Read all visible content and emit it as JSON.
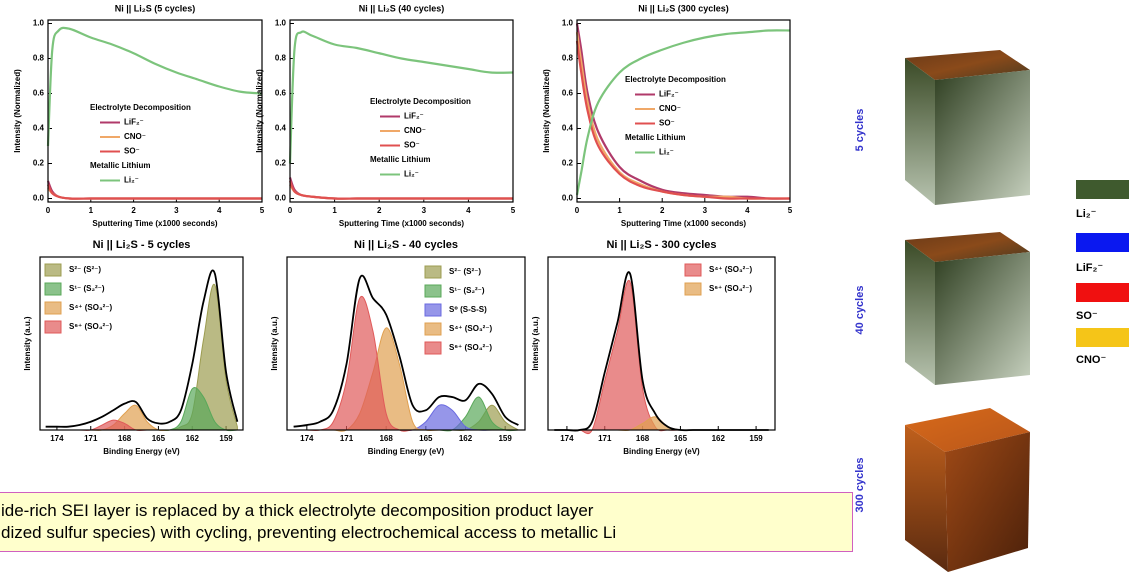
{
  "chart_data": [
    {
      "type": "line",
      "title": "Ni || Li₂S (5 cycles)",
      "x_label": "Sputtering Time (x1000 seconds)",
      "y_label": "Intensity (Normalized)",
      "x": [
        0,
        0.1,
        0.25,
        0.5,
        1,
        1.5,
        2,
        2.5,
        3,
        3.5,
        4,
        4.5,
        5
      ],
      "xlim": [
        0,
        5
      ],
      "xticks": [
        0,
        1,
        2,
        3,
        4,
        5
      ],
      "ylim": [
        -0.02,
        1.02
      ],
      "yticks": [
        {
          "value": 0,
          "label": "0.0"
        },
        {
          "value": 0.2,
          "label": "0.2"
        },
        {
          "value": 0.4,
          "label": "0.4"
        },
        {
          "value": 0.6,
          "label": "0.6"
        },
        {
          "value": 0.8,
          "label": "0.8"
        },
        {
          "value": 1,
          "label": "1.0"
        }
      ],
      "legend_headings": [
        "Electrolyte Decomposition",
        "Metallic Lithium"
      ],
      "series": [
        {
          "name": "LiF₂⁻",
          "color": "#b03a6a",
          "values": [
            0.1,
            0.04,
            0.01,
            0,
            0,
            0,
            0,
            0,
            0,
            0,
            0,
            0,
            0
          ]
        },
        {
          "name": "CNO⁻",
          "color": "#f0a868",
          "values": [
            0.06,
            0.03,
            0.01,
            0,
            0,
            0,
            0,
            0,
            0,
            0,
            0,
            0,
            0
          ]
        },
        {
          "name": "SO⁻",
          "color": "#e05050",
          "values": [
            0.08,
            0.03,
            0.01,
            0,
            0,
            0,
            0,
            0,
            0,
            0,
            0,
            0,
            0
          ]
        },
        {
          "name": "Li₂⁻",
          "color": "#7cc47c",
          "values": [
            0.3,
            0.85,
            0.96,
            0.97,
            0.92,
            0.88,
            0.83,
            0.77,
            0.72,
            0.68,
            0.64,
            0.61,
            0.6
          ]
        }
      ]
    },
    {
      "type": "line",
      "title": "Ni || Li₂S (40 cycles)",
      "x_label": "Sputtering Time (x1000 seconds)",
      "y_label": "Intensity (Normalized)",
      "x": [
        0,
        0.1,
        0.25,
        0.5,
        1,
        1.5,
        2,
        2.5,
        3,
        3.5,
        4,
        4.5,
        5
      ],
      "xlim": [
        0,
        5
      ],
      "xticks": [
        0,
        1,
        2,
        3,
        4,
        5
      ],
      "ylim": [
        -0.02,
        1.02
      ],
      "yticks": [
        {
          "value": 0,
          "label": "0.0"
        },
        {
          "value": 0.2,
          "label": "0.2"
        },
        {
          "value": 0.4,
          "label": "0.4"
        },
        {
          "value": 0.6,
          "label": "0.6"
        },
        {
          "value": 0.8,
          "label": "0.8"
        },
        {
          "value": 1,
          "label": "1.0"
        }
      ],
      "legend_headings": [
        "Electrolyte Decomposition",
        "Metallic Lithium"
      ],
      "series": [
        {
          "name": "LiF₂⁻",
          "color": "#b03a6a",
          "values": [
            0.12,
            0.05,
            0.02,
            0.01,
            0,
            0,
            0,
            0,
            0,
            0,
            0,
            0,
            0
          ]
        },
        {
          "name": "CNO⁻",
          "color": "#f0a868",
          "values": [
            0.08,
            0.04,
            0.02,
            0.01,
            0,
            0,
            0,
            0,
            0,
            0,
            0,
            0,
            0
          ]
        },
        {
          "name": "SO⁻",
          "color": "#e05050",
          "values": [
            0.1,
            0.04,
            0.02,
            0.01,
            0,
            0,
            0,
            0,
            0,
            0,
            0,
            0,
            0
          ]
        },
        {
          "name": "Li₂⁻",
          "color": "#7cc47c",
          "values": [
            0.2,
            0.85,
            0.95,
            0.93,
            0.88,
            0.86,
            0.83,
            0.8,
            0.78,
            0.76,
            0.74,
            0.72,
            0.72
          ]
        }
      ]
    },
    {
      "type": "line",
      "title": "Ni || Li₂S (300 cycles)",
      "x_label": "Sputtering Time (x1000 seconds)",
      "y_label": "Intensity (Normalized)",
      "x": [
        0,
        0.1,
        0.25,
        0.5,
        1,
        1.5,
        2,
        2.5,
        3,
        3.5,
        4,
        4.5,
        5
      ],
      "xlim": [
        0,
        5
      ],
      "xticks": [
        0,
        1,
        2,
        3,
        4,
        5
      ],
      "ylim": [
        -0.02,
        1.02
      ],
      "yticks": [
        {
          "value": 0,
          "label": "0.0"
        },
        {
          "value": 0.2,
          "label": "0.2"
        },
        {
          "value": 0.4,
          "label": "0.4"
        },
        {
          "value": 0.6,
          "label": "0.6"
        },
        {
          "value": 0.8,
          "label": "0.8"
        },
        {
          "value": 1,
          "label": "1.0"
        }
      ],
      "legend_headings": [
        "Electrolyte Decomposition",
        "Metallic Lithium"
      ],
      "series": [
        {
          "name": "LiF₂⁻",
          "color": "#b03a6a",
          "values": [
            1.0,
            0.85,
            0.6,
            0.38,
            0.18,
            0.1,
            0.05,
            0.03,
            0.02,
            0.01,
            0.01,
            0,
            0
          ]
        },
        {
          "name": "CNO⁻",
          "color": "#f0a868",
          "values": [
            0.95,
            0.78,
            0.55,
            0.33,
            0.15,
            0.08,
            0.04,
            0.02,
            0.01,
            0.01,
            0,
            0,
            0
          ]
        },
        {
          "name": "SO⁻",
          "color": "#e05050",
          "values": [
            0.9,
            0.72,
            0.5,
            0.3,
            0.14,
            0.07,
            0.04,
            0.02,
            0.01,
            0,
            0,
            0,
            0
          ]
        },
        {
          "name": "Li₂⁻",
          "color": "#7cc47c",
          "values": [
            0.02,
            0.15,
            0.35,
            0.55,
            0.72,
            0.8,
            0.85,
            0.89,
            0.92,
            0.94,
            0.95,
            0.96,
            0.96
          ]
        }
      ]
    },
    {
      "type": "area",
      "title": "Ni || Li₂S - 5 cycles",
      "x_label": "Binding Energy (eV)",
      "y_label": "Intensity (a.u.)",
      "x": [
        175,
        174,
        173,
        172,
        171,
        170,
        169,
        168,
        167,
        166,
        165,
        164,
        163,
        162,
        161,
        160,
        159,
        158
      ],
      "xlim": [
        175.5,
        157.5
      ],
      "xticks": [
        174,
        171,
        168,
        165,
        162,
        159
      ],
      "ylim": [
        0,
        1.05
      ],
      "series": [
        {
          "name": "S²⁻ (S²⁻)",
          "color": "#9c9c50",
          "fill": true,
          "values": [
            0,
            0,
            0,
            0,
            0,
            0,
            0,
            0,
            0,
            0,
            0,
            0,
            0.02,
            0.1,
            0.55,
            0.88,
            0.3,
            0.02
          ]
        },
        {
          "name": "S¹⁻ (S₂²⁻)",
          "color": "#5aa85a",
          "fill": true,
          "values": [
            0,
            0,
            0,
            0,
            0,
            0,
            0,
            0,
            0,
            0,
            0,
            0,
            0.05,
            0.25,
            0.2,
            0.05,
            0,
            0
          ]
        },
        {
          "name": "S⁴⁺ (SO₃²⁻)",
          "color": "#e0a050",
          "fill": true,
          "values": [
            0,
            0,
            0,
            0,
            0,
            0,
            0.03,
            0.1,
            0.15,
            0.05,
            0,
            0,
            0,
            0,
            0,
            0,
            0,
            0
          ]
        },
        {
          "name": "S⁶⁺ (SO₄²⁻)",
          "color": "#e05a5a",
          "fill": true,
          "values": [
            0,
            0,
            0,
            0,
            0,
            0.03,
            0.06,
            0.04,
            0,
            0,
            0,
            0,
            0,
            0,
            0,
            0,
            0,
            0
          ]
        },
        {
          "color": "#000000",
          "fill": false,
          "values": [
            0.02,
            0.02,
            0.02,
            0.03,
            0.05,
            0.08,
            0.12,
            0.16,
            0.17,
            0.07,
            0.04,
            0.05,
            0.12,
            0.4,
            0.78,
            0.95,
            0.35,
            0.05
          ]
        }
      ]
    },
    {
      "type": "area",
      "title": "Ni || Li₂S - 40 cycles",
      "x_label": "Binding Energy (eV)",
      "y_label": "Intensity (a.u.)",
      "x": [
        175,
        174,
        173,
        172,
        171,
        170,
        169,
        168,
        167,
        166,
        165,
        164,
        163,
        162,
        161,
        160,
        159,
        158
      ],
      "xlim": [
        175.5,
        157.5
      ],
      "xticks": [
        174,
        171,
        168,
        165,
        162,
        159
      ],
      "ylim": [
        0,
        1.05
      ],
      "series": [
        {
          "name": "S²⁻ (S²⁻)",
          "color": "#9c9c50",
          "fill": true,
          "values": [
            0,
            0,
            0,
            0,
            0,
            0,
            0,
            0,
            0,
            0,
            0,
            0,
            0,
            0,
            0.05,
            0.15,
            0.05,
            0
          ]
        },
        {
          "name": "S¹⁻ (S₂²⁻)",
          "color": "#5aa85a",
          "fill": true,
          "values": [
            0,
            0,
            0,
            0,
            0,
            0,
            0,
            0,
            0,
            0,
            0,
            0,
            0,
            0.08,
            0.2,
            0.05,
            0,
            0
          ]
        },
        {
          "name": "S⁰ (S-S-S)",
          "color": "#6a6ae0",
          "fill": true,
          "values": [
            0,
            0,
            0,
            0,
            0,
            0,
            0,
            0,
            0,
            0,
            0.05,
            0.15,
            0.12,
            0.02,
            0,
            0,
            0,
            0
          ]
        },
        {
          "name": "S⁴⁺ (SO₃²⁻)",
          "color": "#e0a050",
          "fill": true,
          "values": [
            0,
            0,
            0,
            0,
            0,
            0.1,
            0.35,
            0.62,
            0.4,
            0.05,
            0,
            0,
            0,
            0,
            0,
            0,
            0,
            0
          ]
        },
        {
          "name": "S⁶⁺ (SO₄²⁻)",
          "color": "#e05a5a",
          "fill": true,
          "values": [
            0,
            0,
            0,
            0.05,
            0.3,
            0.8,
            0.6,
            0.1,
            0,
            0,
            0,
            0,
            0,
            0,
            0,
            0,
            0,
            0
          ]
        },
        {
          "color": "#000000",
          "fill": false,
          "values": [
            0.02,
            0.03,
            0.05,
            0.12,
            0.4,
            0.92,
            0.8,
            0.7,
            0.45,
            0.15,
            0.12,
            0.2,
            0.2,
            0.18,
            0.28,
            0.22,
            0.08,
            0.03
          ]
        }
      ]
    },
    {
      "type": "area",
      "title": "Ni || Li₂S - 300 cycles",
      "x_label": "Binding Energy (eV)",
      "y_label": "Intensity (a.u.)",
      "x": [
        175,
        174,
        173,
        172,
        171,
        170,
        169,
        168,
        167,
        166,
        165,
        164,
        163,
        162,
        161,
        160,
        159,
        158
      ],
      "xlim": [
        175.5,
        157.5
      ],
      "xticks": [
        174,
        171,
        168,
        165,
        162,
        159
      ],
      "ylim": [
        0,
        1.05
      ],
      "series": [
        {
          "name": "S⁴⁺ (SO₃²⁻)",
          "color": "#e05a5a",
          "fill": true,
          "values": [
            0,
            0,
            0,
            0,
            0.3,
            0.6,
            0.9,
            0.25,
            0.02,
            0,
            0,
            0,
            0,
            0,
            0,
            0,
            0,
            0
          ]
        },
        {
          "name": "S⁶⁺ (SO₄²⁻)",
          "color": "#e0a050",
          "fill": true,
          "values": [
            0,
            0,
            0,
            0,
            0,
            0,
            0,
            0.04,
            0.08,
            0.02,
            0,
            0,
            0,
            0,
            0,
            0,
            0,
            0
          ]
        },
        {
          "color": "#000000",
          "fill": false,
          "values": [
            0,
            0,
            0,
            0.05,
            0.35,
            0.65,
            0.95,
            0.3,
            0.1,
            0.02,
            0,
            0,
            0,
            0,
            0,
            0,
            0,
            0
          ]
        }
      ]
    }
  ],
  "tomography": {
    "labels": [
      "5 cycles",
      "40 cycles",
      "300 cycles"
    ],
    "legend": [
      {
        "name": "Li₂⁻",
        "color": "#3f5a2e"
      },
      {
        "name": "LiF₂⁻",
        "color": "#0a18f0"
      },
      {
        "name": "SO⁻",
        "color": "#f01010"
      },
      {
        "name": "CNO⁻",
        "color": "#f5c518"
      }
    ]
  },
  "caption": {
    "lines": [
      "ide-rich SEI layer is replaced by a thick electrolyte decomposition product layer",
      "dized sulfur species) with cycling, preventing electrochemical access to metallic Li"
    ]
  }
}
